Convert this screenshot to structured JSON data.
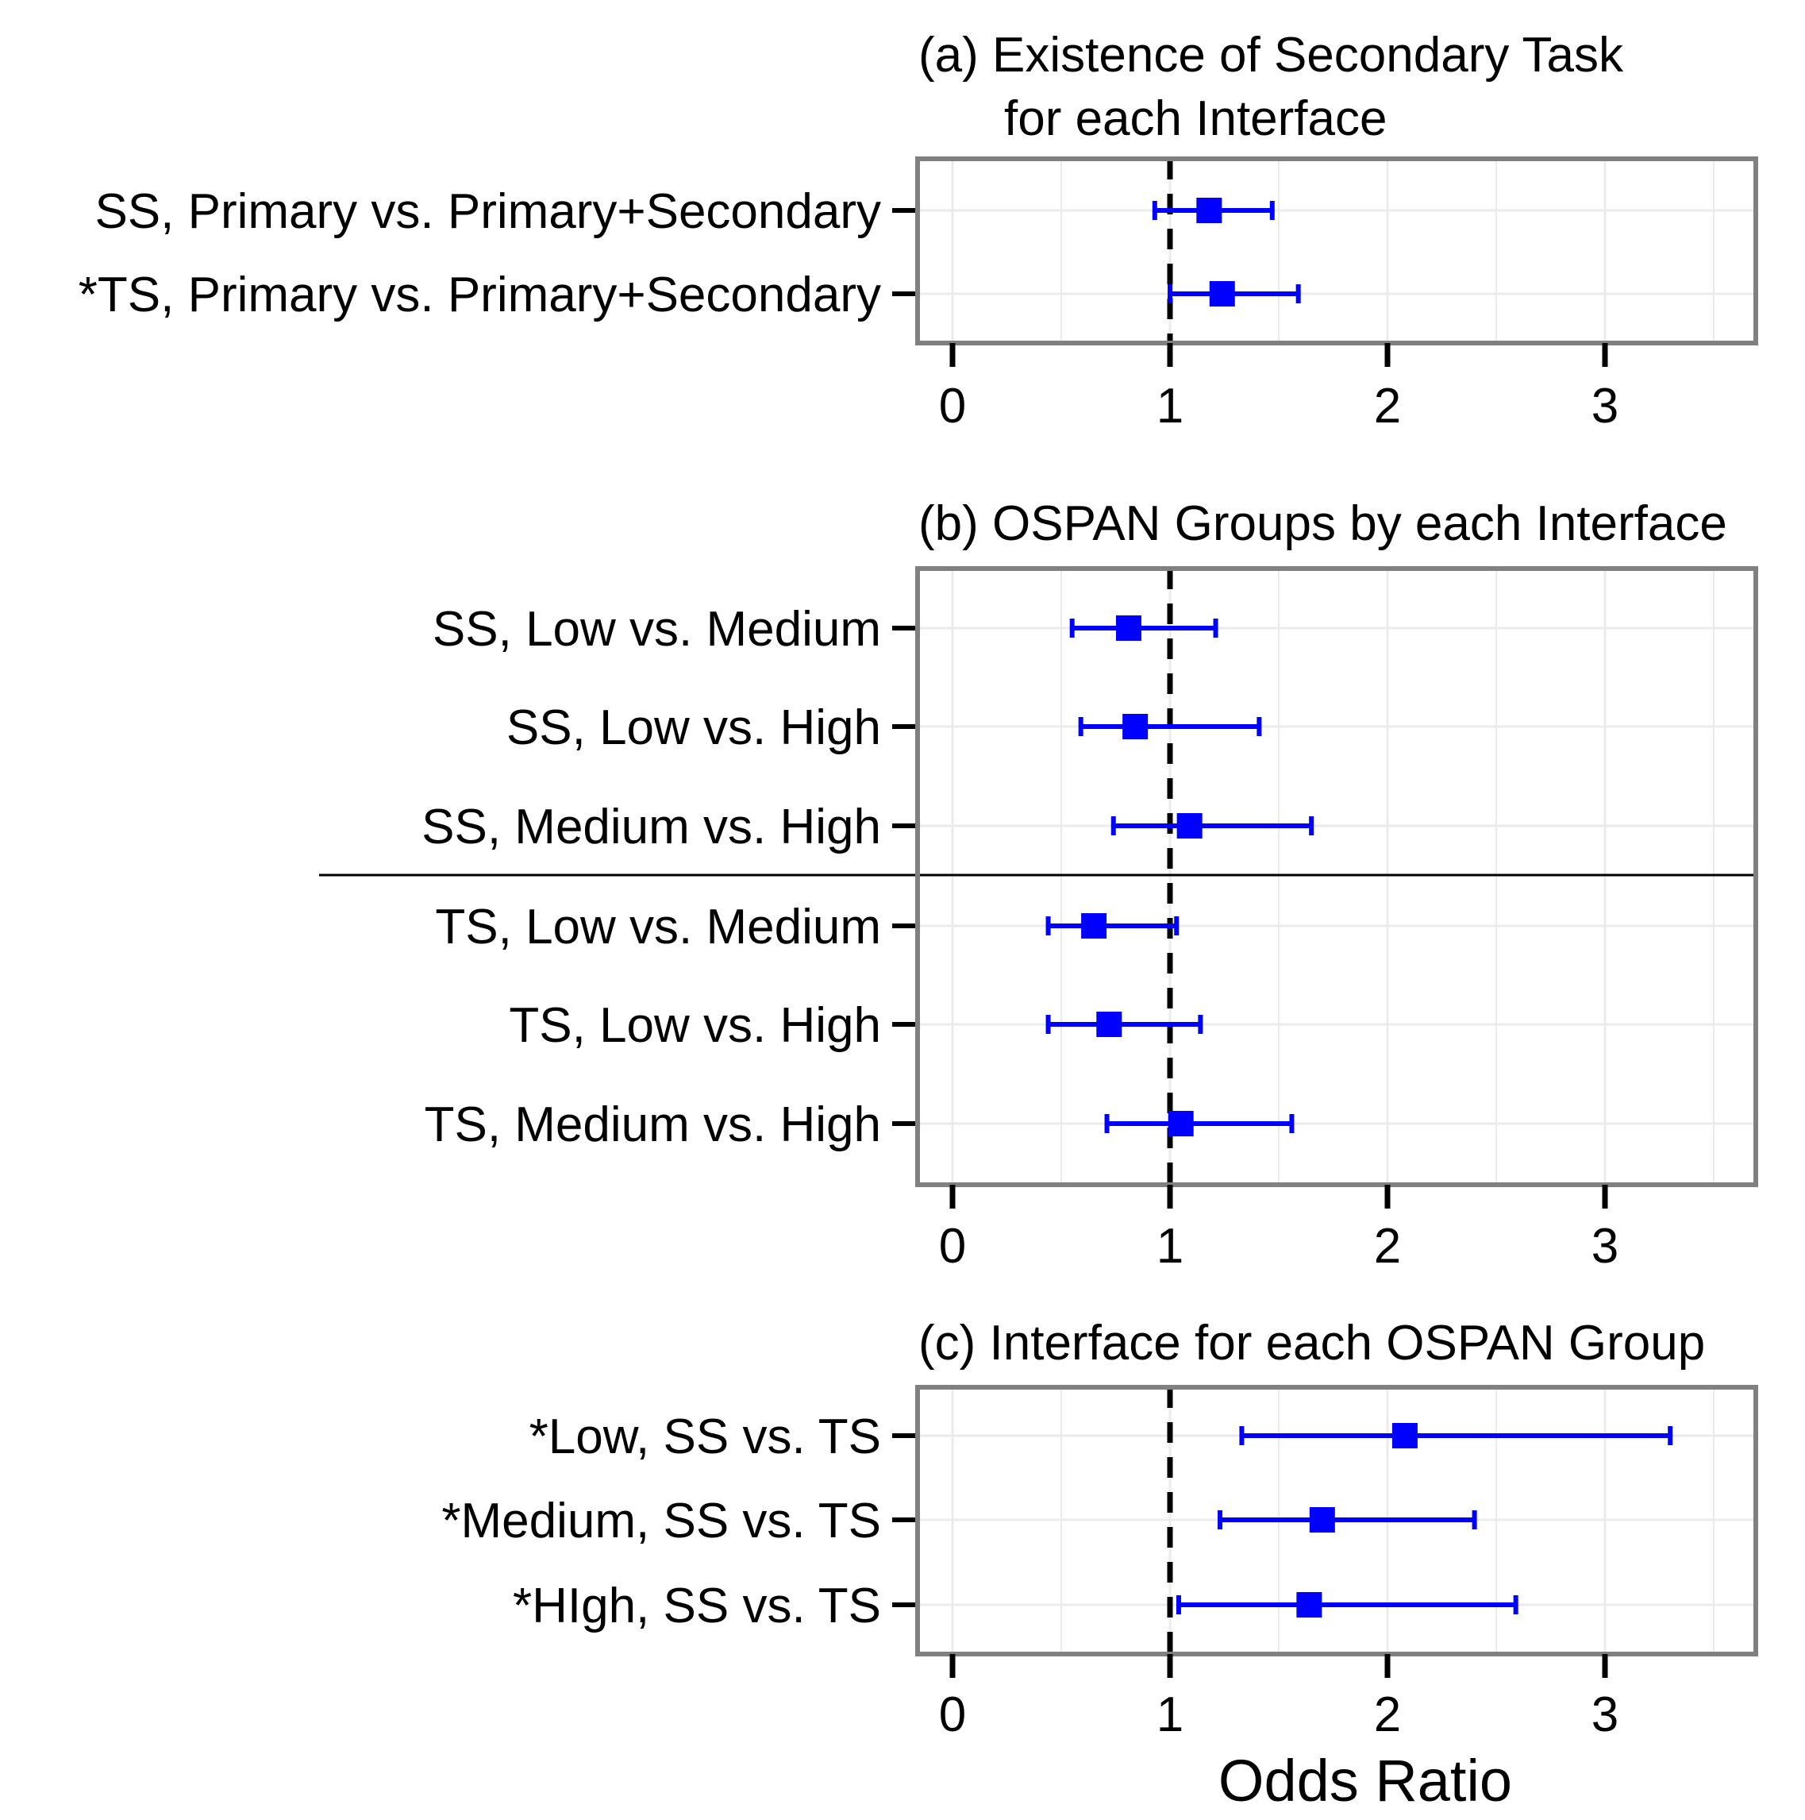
{
  "chart_data": {
    "type": "forest",
    "xlabel": "Odds Ratio",
    "xlim": [
      -0.17,
      3.67
    ],
    "xticks": [
      0,
      1,
      2,
      3
    ],
    "reference_line": 1,
    "colors": {
      "marker": "#0000ff",
      "panel_border": "#808080",
      "grid": "#ebebeb",
      "reference": "#000000"
    },
    "panels": [
      {
        "title_lines": [
          "(a) Existence of Secondary Task",
          "for each Interface"
        ],
        "rows": [
          {
            "label": "SS, Primary vs. Primary+Secondary",
            "estimate": 1.18,
            "lower": 0.93,
            "upper": 1.47
          },
          {
            "label": "*TS, Primary vs. Primary+Secondary",
            "estimate": 1.24,
            "lower": 1.0,
            "upper": 1.59
          }
        ]
      },
      {
        "title_lines": [
          "(b) OSPAN Groups by each Interface"
        ],
        "group_separator_after": 3,
        "rows": [
          {
            "label": "SS, Low vs. Medium",
            "estimate": 0.81,
            "lower": 0.55,
            "upper": 1.21
          },
          {
            "label": "SS, Low vs. High",
            "estimate": 0.84,
            "lower": 0.59,
            "upper": 1.41
          },
          {
            "label": "SS, Medium vs. High",
            "estimate": 1.09,
            "lower": 0.74,
            "upper": 1.65
          },
          {
            "label": "TS, Low vs. Medium",
            "estimate": 0.65,
            "lower": 0.44,
            "upper": 1.03
          },
          {
            "label": "TS, Low vs. High",
            "estimate": 0.72,
            "lower": 0.44,
            "upper": 1.14
          },
          {
            "label": "TS, Medium vs. High",
            "estimate": 1.05,
            "lower": 0.71,
            "upper": 1.56
          }
        ]
      },
      {
        "title_lines": [
          "(c) Interface for each OSPAN Group"
        ],
        "rows": [
          {
            "label": "*Low, SS vs. TS",
            "estimate": 2.08,
            "lower": 1.33,
            "upper": 3.3
          },
          {
            "label": "*Medium, SS vs. TS",
            "estimate": 1.7,
            "lower": 1.23,
            "upper": 2.4
          },
          {
            "label": "*HIgh, SS vs. TS",
            "estimate": 1.64,
            "lower": 1.04,
            "upper": 2.59
          }
        ]
      }
    ]
  }
}
